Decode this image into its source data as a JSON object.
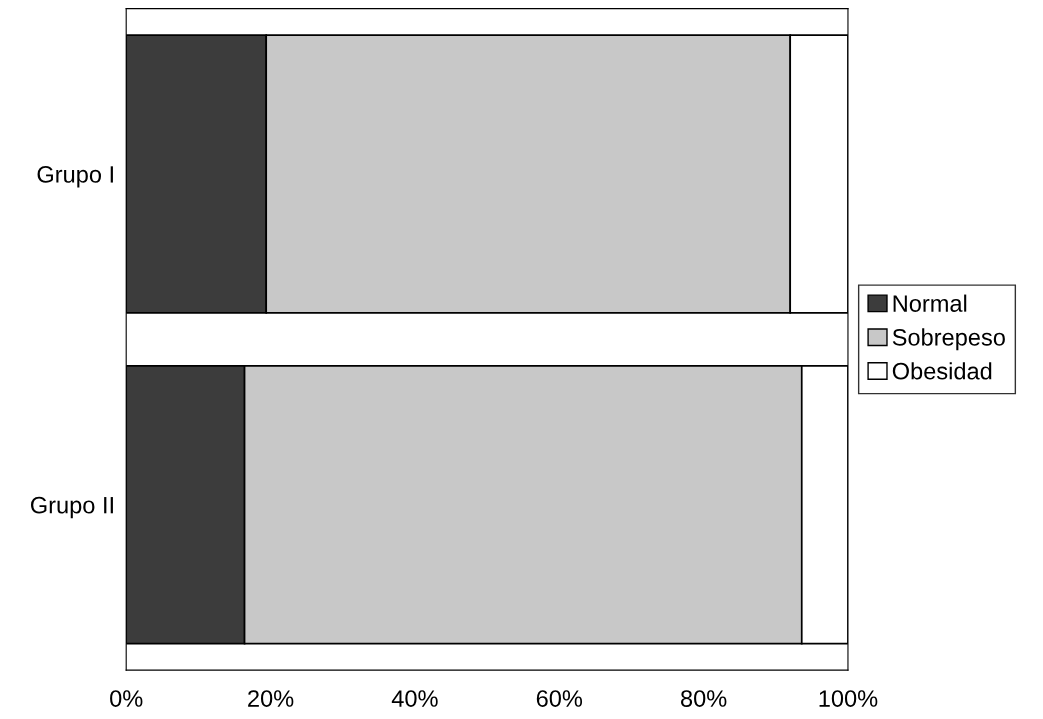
{
  "chart_data": {
    "type": "bar",
    "orientation": "horizontal",
    "stacked": true,
    "categories": [
      "Grupo I",
      "Grupo II"
    ],
    "series": [
      {
        "name": "Normal",
        "color": "#3c3c3c",
        "values": [
          19.4,
          16.4
        ]
      },
      {
        "name": "Sobrepeso",
        "color": "#c8c8c8",
        "values": [
          72.6,
          77.2
        ]
      },
      {
        "name": "Obesidad",
        "color": "#ffffff",
        "values": [
          8.0,
          6.4
        ]
      }
    ],
    "xlim": [
      0,
      100
    ],
    "xticks": [
      {
        "value": 0,
        "label": "0%"
      },
      {
        "value": 20,
        "label": "20%"
      },
      {
        "value": 40,
        "label": "40%"
      },
      {
        "value": 60,
        "label": "60%"
      },
      {
        "value": 80,
        "label": "80%"
      },
      {
        "value": 100,
        "label": "100%"
      }
    ],
    "grid": false,
    "legend": "right"
  }
}
